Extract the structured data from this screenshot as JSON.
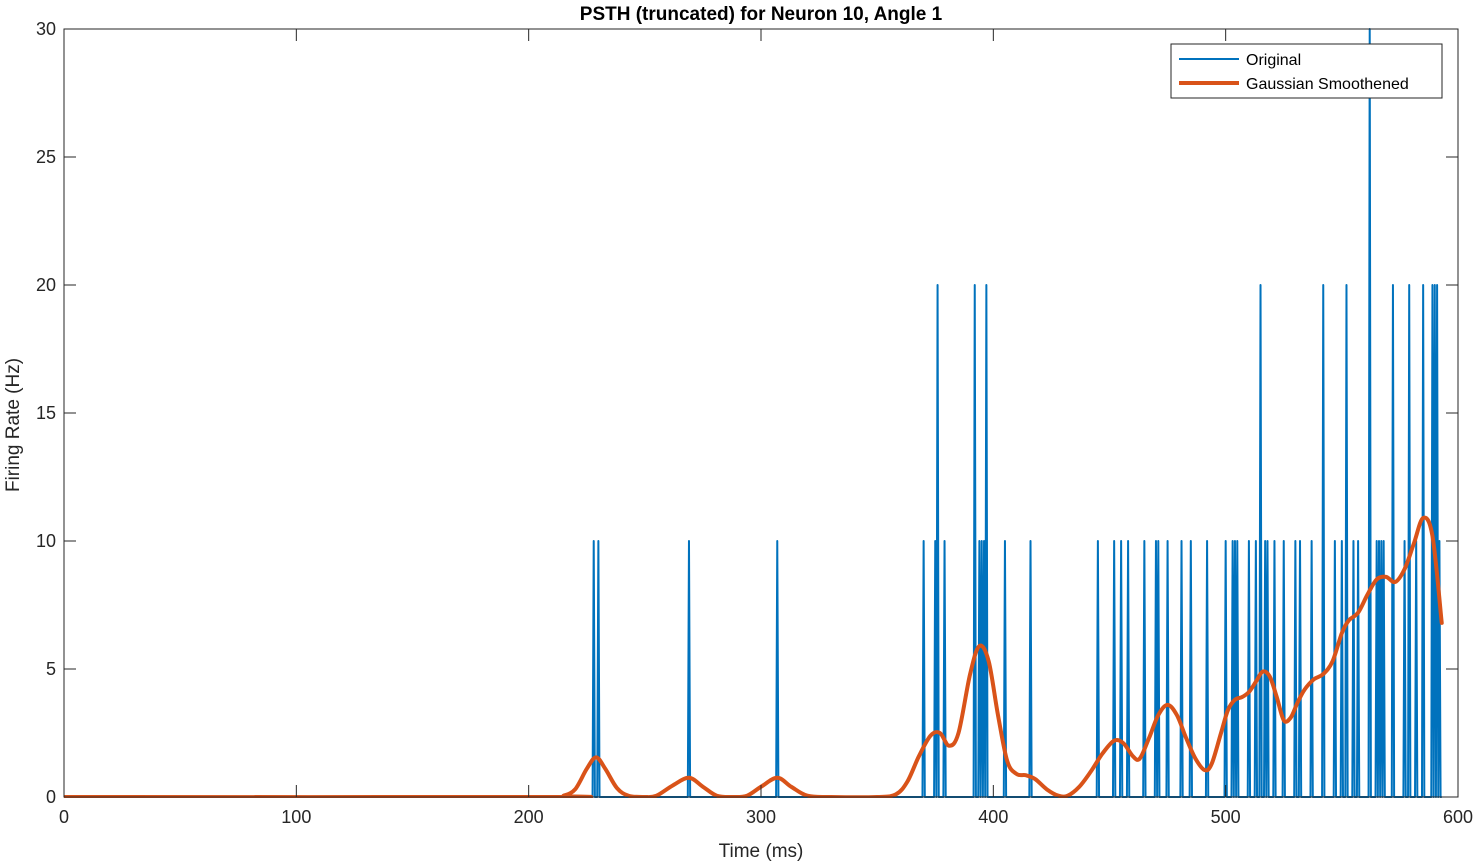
{
  "chart_data": {
    "type": "line",
    "title": "PSTH (truncated) for Neuron 10, Angle 1",
    "xlabel": "Time (ms)",
    "ylabel": "Firing Rate (Hz)",
    "xlim": [
      0,
      600
    ],
    "ylim": [
      0,
      30
    ],
    "xticks": [
      0,
      100,
      200,
      300,
      400,
      500,
      600
    ],
    "yticks": [
      0,
      5,
      10,
      15,
      20,
      25,
      30
    ],
    "grid": false,
    "legend_position": "top-right",
    "series": [
      {
        "name": "Original",
        "color": "#0072BD",
        "line_width": 2,
        "spikes": [
          [
            228,
            10
          ],
          [
            230,
            10
          ],
          [
            269,
            10
          ],
          [
            307,
            10
          ],
          [
            370,
            10
          ],
          [
            375,
            10
          ],
          [
            376,
            20
          ],
          [
            379,
            10
          ],
          [
            392,
            20
          ],
          [
            394,
            10
          ],
          [
            395,
            10
          ],
          [
            396,
            10
          ],
          [
            397,
            20
          ],
          [
            405,
            10
          ],
          [
            416,
            10
          ],
          [
            445,
            10
          ],
          [
            452,
            10
          ],
          [
            455,
            10
          ],
          [
            458,
            10
          ],
          [
            465,
            10
          ],
          [
            470,
            10
          ],
          [
            471,
            10
          ],
          [
            475,
            10
          ],
          [
            481,
            10
          ],
          [
            485,
            10
          ],
          [
            492,
            10
          ],
          [
            500,
            10
          ],
          [
            503,
            10
          ],
          [
            504,
            10
          ],
          [
            505,
            10
          ],
          [
            510,
            10
          ],
          [
            513,
            10
          ],
          [
            515,
            20
          ],
          [
            517,
            10
          ],
          [
            518,
            10
          ],
          [
            521,
            10
          ],
          [
            525,
            10
          ],
          [
            530,
            10
          ],
          [
            532,
            10
          ],
          [
            537,
            10
          ],
          [
            542,
            20
          ],
          [
            547,
            10
          ],
          [
            550,
            10
          ],
          [
            552,
            20
          ],
          [
            555,
            10
          ],
          [
            557,
            10
          ],
          [
            562,
            30
          ],
          [
            565,
            10
          ],
          [
            566,
            10
          ],
          [
            567,
            10
          ],
          [
            568,
            10
          ],
          [
            572,
            20
          ],
          [
            577,
            10
          ],
          [
            579,
            20
          ],
          [
            582,
            10
          ],
          [
            585,
            20
          ],
          [
            589,
            20
          ],
          [
            590,
            20
          ],
          [
            591,
            20
          ],
          [
            592,
            10
          ]
        ],
        "x_end": 593
      },
      {
        "name": "Gaussian Smoothened",
        "color": "#D95319",
        "line_width": 4,
        "x": [
          0,
          210,
          215,
          220,
          225,
          229,
          233,
          238,
          243,
          250,
          255,
          262,
          269,
          275,
          281,
          288,
          294,
          300,
          307,
          313,
          320,
          330,
          350,
          358,
          363,
          368,
          373,
          377,
          381,
          385,
          390,
          394,
          398,
          402,
          406,
          410,
          414,
          418,
          423,
          428,
          432,
          437,
          442,
          447,
          452,
          456,
          460,
          463,
          467,
          471,
          475,
          479,
          483,
          487,
          491,
          494,
          498,
          501,
          504,
          507,
          510,
          513,
          516,
          519,
          522,
          525,
          528,
          531,
          534,
          538,
          542,
          546,
          550,
          553,
          557,
          561,
          565,
          569,
          573,
          577,
          581,
          585,
          589,
          593
        ],
        "y": [
          0,
          0,
          0.05,
          0.3,
          1.1,
          1.55,
          1.1,
          0.35,
          0.05,
          0,
          0.05,
          0.45,
          0.75,
          0.4,
          0.05,
          0,
          0.05,
          0.4,
          0.75,
          0.4,
          0.05,
          0,
          0,
          0.1,
          0.6,
          1.6,
          2.4,
          2.5,
          2.0,
          2.5,
          4.8,
          5.9,
          5.3,
          3.2,
          1.4,
          0.9,
          0.85,
          0.7,
          0.3,
          0.05,
          0.05,
          0.4,
          1.0,
          1.7,
          2.2,
          2.1,
          1.6,
          1.5,
          2.3,
          3.2,
          3.6,
          3.2,
          2.3,
          1.5,
          1.05,
          1.3,
          2.5,
          3.4,
          3.8,
          3.9,
          4.1,
          4.5,
          4.9,
          4.7,
          3.9,
          3.0,
          3.1,
          3.7,
          4.2,
          4.6,
          4.8,
          5.3,
          6.4,
          6.9,
          7.2,
          7.9,
          8.5,
          8.6,
          8.4,
          8.9,
          9.9,
          10.9,
          10.2,
          6.8
        ]
      }
    ]
  }
}
